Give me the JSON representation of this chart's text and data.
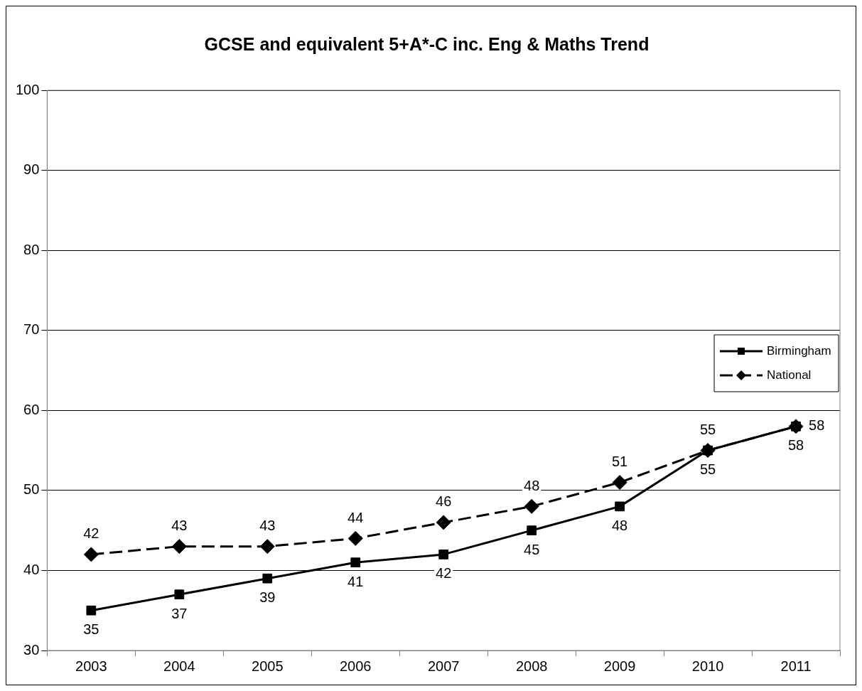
{
  "chart_data": {
    "type": "line",
    "title": "GCSE and equivalent 5+A*-C inc. Eng & Maths Trend",
    "categories": [
      "2003",
      "2004",
      "2005",
      "2006",
      "2007",
      "2008",
      "2009",
      "2010",
      "2011"
    ],
    "series": [
      {
        "name": "Birmingham",
        "color": "#000000",
        "values": [
          35,
          37,
          39,
          41,
          42,
          45,
          48,
          55,
          58
        ],
        "marker": "square",
        "line_style": "solid"
      },
      {
        "name": "National",
        "color": "#000000",
        "values": [
          42,
          43,
          43,
          44,
          46,
          48,
          51,
          55,
          58
        ],
        "marker": "diamond",
        "line_style": "dashed"
      }
    ],
    "ylim": [
      30,
      100
    ],
    "yticks": [
      30,
      40,
      50,
      60,
      70,
      80,
      90,
      100
    ],
    "grid": "y",
    "legend": "right",
    "data_labels": true
  }
}
